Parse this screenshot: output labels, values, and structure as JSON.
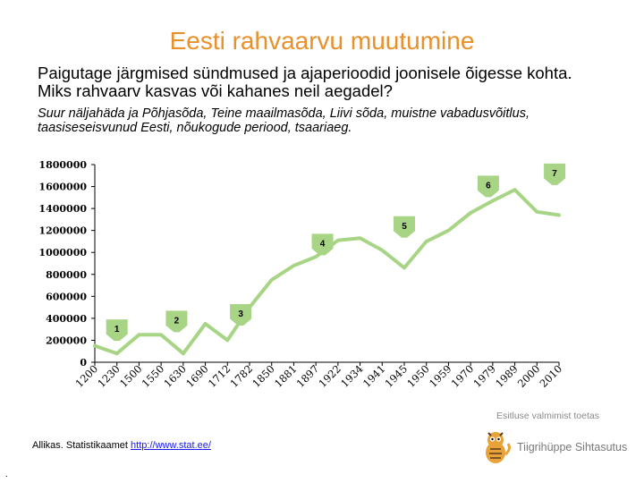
{
  "title": "Eesti rahvaarvu muutumine",
  "instruction": "Paigutage järgmised sündmused ja ajaperioodid joonisele õigesse kohta. Miks rahvaarv kasvas või kahanes neil aegadel?",
  "events": "Suur näljahäda ja Põhjasõda, Teine maailmasõda, Liivi sõda,  muistne vabadusvõitlus, taasiseseisvunud Eesti,  nõukogude periood,  tsaariaeg.",
  "source_label": "Allikas. Statistikaamet ",
  "source_link": "http://www.stat.ee/",
  "sponsor_text": "Esitluse valmimist toetas",
  "logo_text": "Tiigrihüppe Sihtasutus",
  "footnote": ".",
  "colors": {
    "title": "#e8902a",
    "line": "#a8d585",
    "callout": "#a8d585"
  },
  "chart_data": {
    "type": "line",
    "categories": [
      "1200",
      "1230",
      "1500",
      "1550",
      "1630",
      "1690",
      "1712",
      "1782",
      "1850",
      "1881",
      "1897",
      "1922",
      "1934",
      "1941",
      "1945",
      "1950",
      "1959",
      "1970",
      "1979",
      "1989",
      "2000",
      "2010"
    ],
    "series": [
      {
        "values": [
          150000,
          80000,
          250000,
          250000,
          80000,
          350000,
          200000,
          500000,
          750000,
          880000,
          960000,
          1110000,
          1130000,
          1020000,
          860000,
          1100000,
          1200000,
          1360000,
          1470000,
          1570000,
          1370000,
          1340000
        ]
      }
    ],
    "ylim": [
      0,
      1800000
    ],
    "yticks": [
      "0",
      "200000",
      "400000",
      "600000",
      "800000",
      "1000000",
      "1200000",
      "1400000",
      "1600000",
      "1800000"
    ],
    "grid": false,
    "callouts": [
      {
        "label": "1",
        "x_index": 1.0,
        "y": 300000
      },
      {
        "label": "2",
        "x_index": 3.7,
        "y": 380000
      },
      {
        "label": "3",
        "x_index": 6.6,
        "y": 440000
      },
      {
        "label": "4",
        "x_index": 10.3,
        "y": 1080000
      },
      {
        "label": "5",
        "x_index": 14.0,
        "y": 1240000
      },
      {
        "label": "6",
        "x_index": 17.8,
        "y": 1610000
      },
      {
        "label": "7",
        "x_index": 20.8,
        "y": 1720000
      }
    ]
  }
}
